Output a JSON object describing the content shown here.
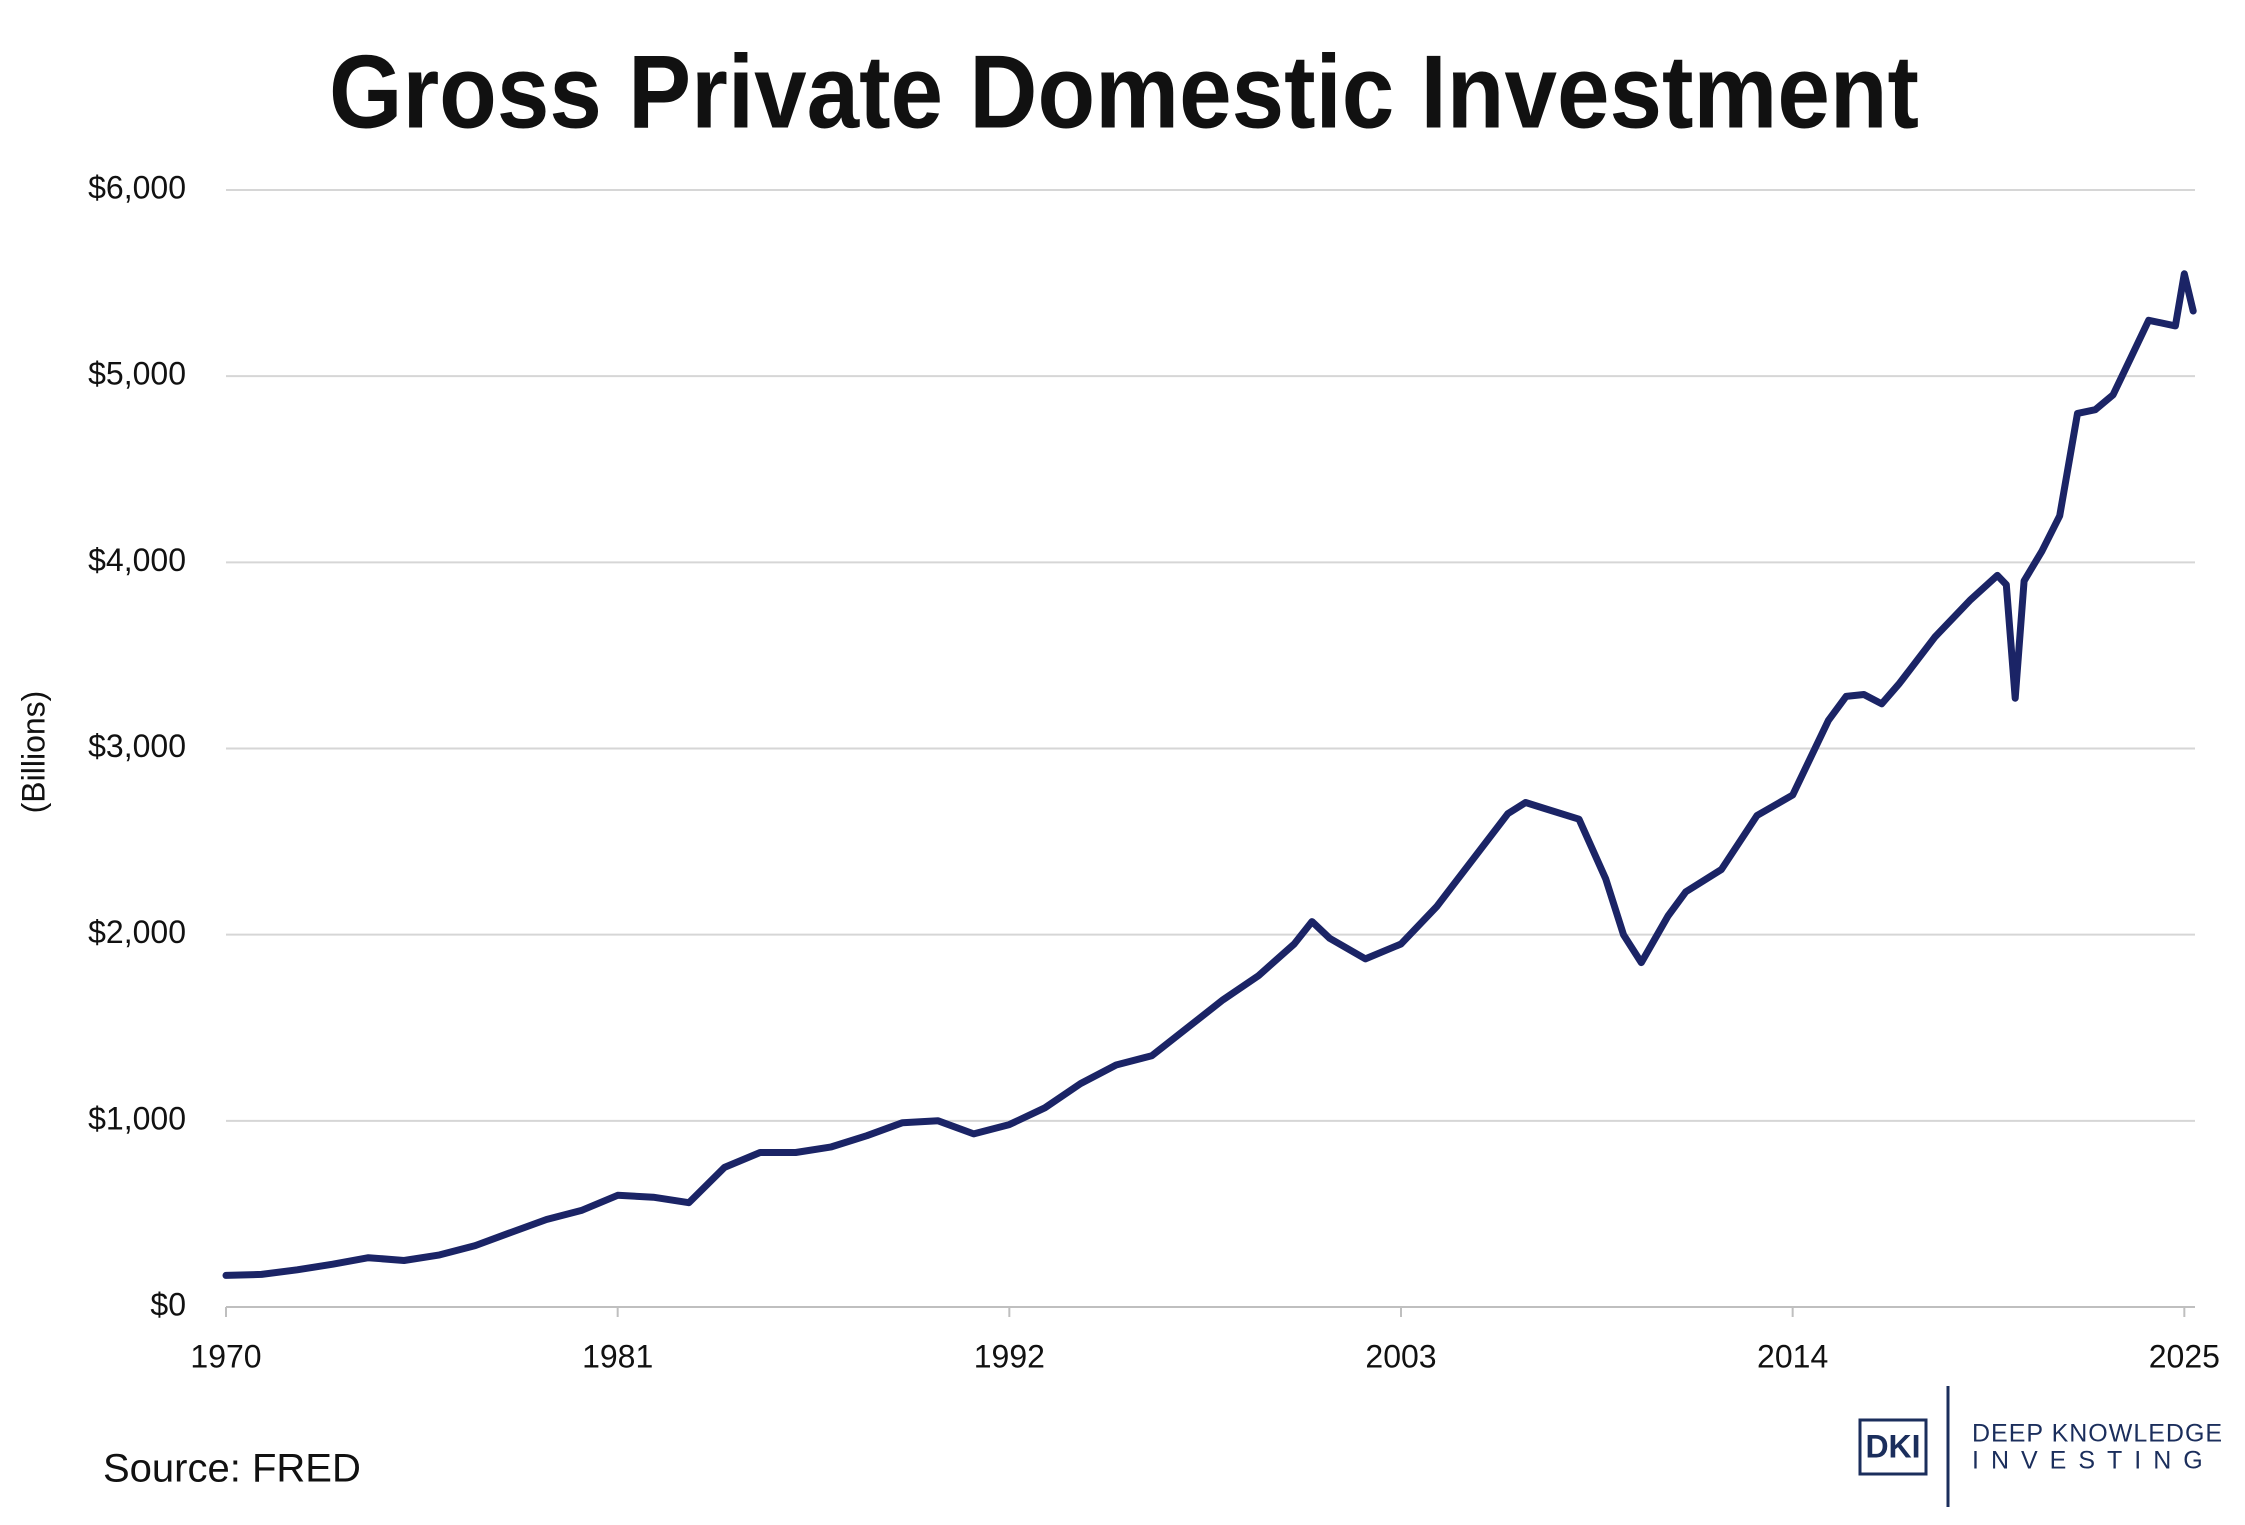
{
  "chart_data": {
    "type": "line",
    "title": "Gross Private Domestic Investment",
    "y_label": "(Billions)",
    "source": "Source: FRED",
    "logo": {
      "mark": "DKI",
      "line1": "DEEP KNOWLEDGE",
      "line2": "INVESTING"
    },
    "color": "#1b2466",
    "x": [
      1970,
      1971,
      1972,
      1973,
      1974,
      1975,
      1976,
      1977,
      1978,
      1979,
      1980,
      1981,
      1982,
      1983,
      1984,
      1985,
      1986,
      1987,
      1988,
      1989,
      1990,
      1991,
      1992,
      1993,
      1994,
      1995,
      1996,
      1997,
      1998,
      1999,
      2000,
      2000.5,
      2001,
      2002,
      2003,
      2004,
      2005,
      2006,
      2006.5,
      2007,
      2008,
      2008.75,
      2009.25,
      2009.75,
      2010.5,
      2011,
      2012,
      2013,
      2014,
      2015,
      2015.5,
      2016,
      2016.5,
      2017,
      2018,
      2019,
      2019.75,
      2020,
      2020.25,
      2020.5,
      2021,
      2021.5,
      2022,
      2022.5,
      2023,
      2023.5,
      2024,
      2024.75,
      2025,
      2025.25
    ],
    "values": [
      170,
      175,
      200,
      230,
      265,
      250,
      280,
      330,
      400,
      470,
      520,
      600,
      590,
      560,
      750,
      830,
      830,
      860,
      920,
      990,
      1000,
      930,
      980,
      1070,
      1200,
      1300,
      1350,
      1500,
      1650,
      1780,
      1950,
      2070,
      1980,
      1870,
      1950,
      2150,
      2400,
      2650,
      2710,
      2680,
      2620,
      2300,
      2000,
      1850,
      2100,
      2230,
      2350,
      2640,
      2750,
      3150,
      3280,
      3290,
      3240,
      3350,
      3600,
      3800,
      3930,
      3880,
      3270,
      3900,
      4060,
      4250,
      4800,
      4820,
      4900,
      5100,
      5300,
      5270,
      5550,
      5350
    ],
    "xlim": [
      1970,
      2025.3
    ],
    "xticks": [
      1970,
      1981,
      1992,
      2003,
      2014,
      2025
    ],
    "ylim": [
      0,
      6000
    ],
    "yticks": [
      {
        "value": 0,
        "label": "$0"
      },
      {
        "value": 1000,
        "label": "$1,000"
      },
      {
        "value": 2000,
        "label": "$2,000"
      },
      {
        "value": 3000,
        "label": "$3,000"
      },
      {
        "value": 4000,
        "label": "$4,000"
      },
      {
        "value": 5000,
        "label": "$5,000"
      },
      {
        "value": 6000,
        "label": "$6,000"
      }
    ],
    "grid": true
  }
}
